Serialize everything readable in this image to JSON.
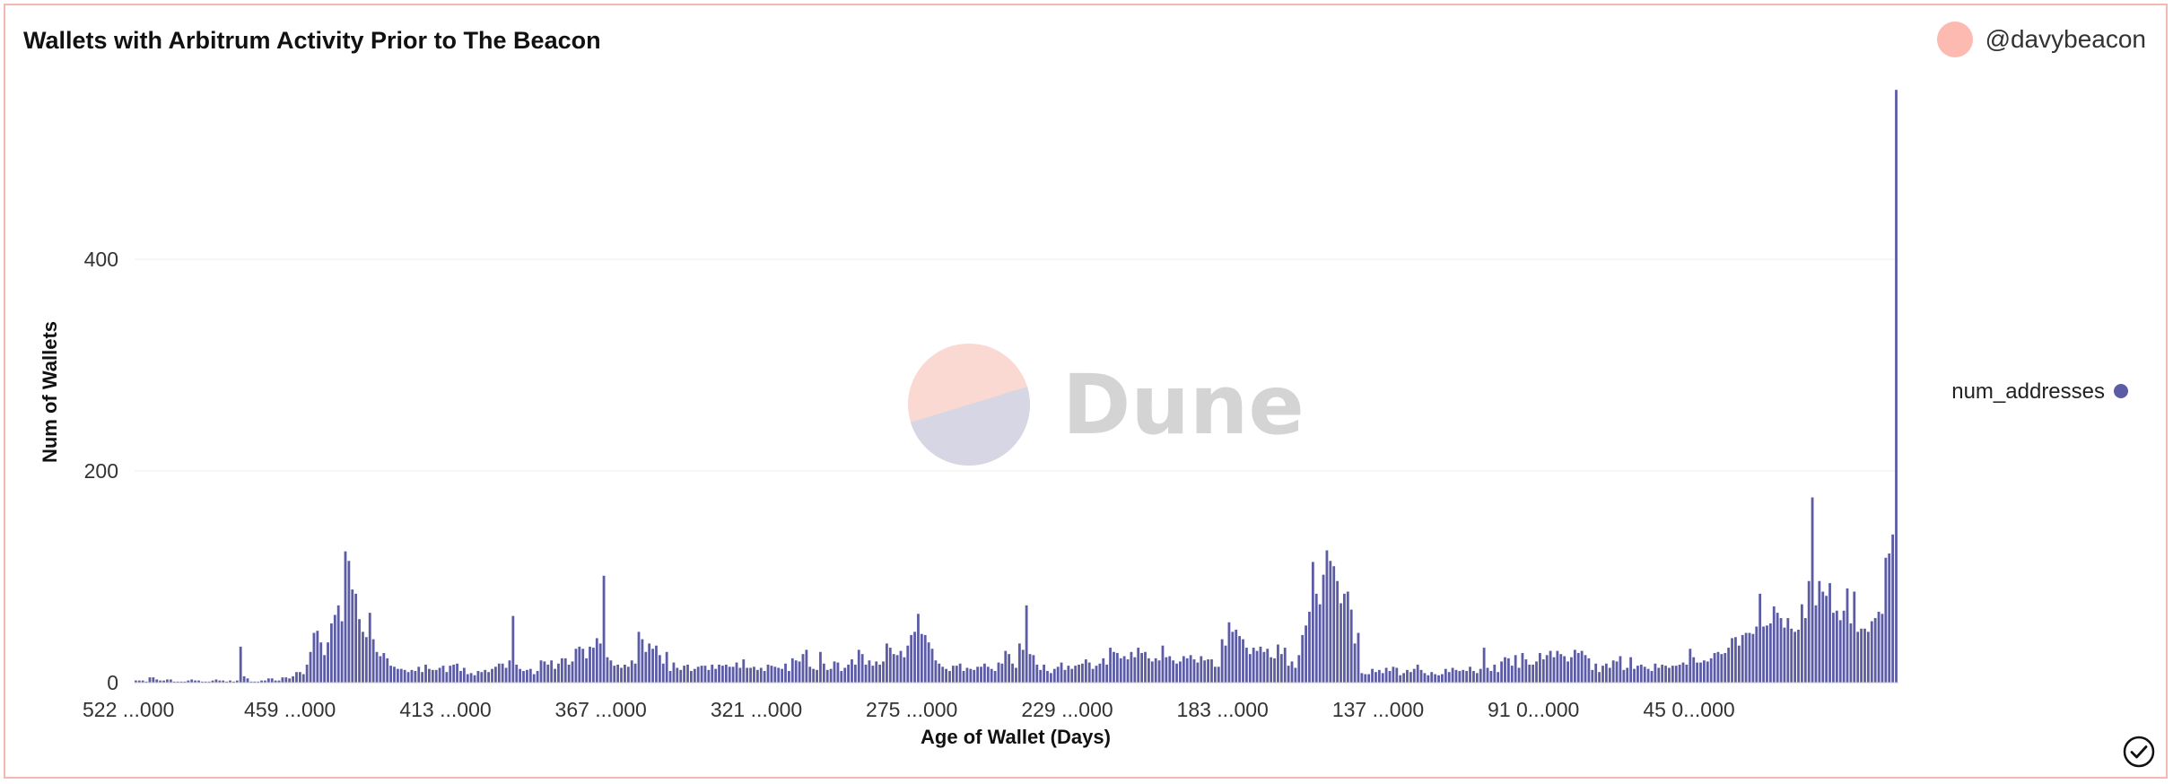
{
  "header": {
    "title": "Wallets with Arbitrum Activity Prior to The Beacon",
    "author": "@davybeacon"
  },
  "watermark": {
    "text": "Dune"
  },
  "icons": {
    "avatar": "avatar-circle",
    "status": "check-circle-icon",
    "legend_marker": "dot"
  },
  "colors": {
    "bar": "#5c5ca6",
    "grid": "#ececec",
    "accent": "#fcbab0",
    "watermark_top": "#fbd9d3",
    "watermark_bottom": "#d6d6e4"
  },
  "chart_data": {
    "type": "bar",
    "title": "Wallets with Arbitrum Activity Prior to The Beacon",
    "xlabel": "Age of Wallet (Days)",
    "ylabel": "Num of Wallets",
    "ylim": [
      0,
      560
    ],
    "yticks": [
      0,
      200,
      400
    ],
    "xticklabels": [
      "522 ...000",
      "459 ...000",
      "413 ...000",
      "367 ...000",
      "321 ...000",
      "275 ...000",
      "229 ...000",
      "183 ...000",
      "137 ...000",
      "91 0...000",
      "45 0...000"
    ],
    "legend_position": "right",
    "grid": true,
    "series": [
      {
        "name": "num_addresses",
        "age_max": 522,
        "age_min": 0,
        "values": [
          2,
          2,
          2,
          1,
          5,
          5,
          3,
          2,
          2,
          3,
          3,
          1,
          1,
          1,
          1,
          2,
          3,
          2,
          2,
          1,
          1,
          1,
          2,
          3,
          2,
          2,
          1,
          2,
          1,
          2,
          34,
          6,
          4,
          1,
          1,
          1,
          2,
          2,
          4,
          4,
          2,
          2,
          5,
          5,
          4,
          6,
          10,
          10,
          8,
          17,
          29,
          47,
          49,
          38,
          26,
          38,
          56,
          64,
          73,
          58,
          124,
          115,
          88,
          84,
          60,
          48,
          43,
          66,
          41,
          29,
          25,
          28,
          23,
          16,
          15,
          13,
          13,
          12,
          10,
          12,
          11,
          15,
          10,
          17,
          13,
          12,
          12,
          14,
          16,
          10,
          16,
          17,
          18,
          11,
          14,
          8,
          9,
          7,
          11,
          10,
          12,
          10,
          13,
          15,
          18,
          18,
          14,
          21,
          63,
          17,
          13,
          11,
          12,
          13,
          8,
          11,
          21,
          20,
          17,
          21,
          13,
          18,
          23,
          23,
          17,
          20,
          32,
          34,
          32,
          23,
          34,
          33,
          42,
          37,
          101,
          24,
          21,
          16,
          17,
          14,
          17,
          15,
          21,
          18,
          48,
          41,
          29,
          37,
          32,
          35,
          26,
          18,
          29,
          11,
          19,
          14,
          12,
          16,
          17,
          11,
          13,
          15,
          16,
          16,
          12,
          17,
          13,
          17,
          16,
          17,
          15,
          15,
          19,
          14,
          22,
          14,
          14,
          15,
          12,
          14,
          11,
          17,
          16,
          15,
          14,
          13,
          18,
          11,
          23,
          21,
          20,
          27,
          31,
          15,
          13,
          12,
          29,
          18,
          12,
          13,
          20,
          19,
          11,
          14,
          17,
          22,
          17,
          31,
          27,
          17,
          21,
          16,
          20,
          17,
          20,
          37,
          33,
          27,
          26,
          30,
          24,
          35,
          45,
          48,
          65,
          46,
          45,
          38,
          32,
          21,
          18,
          15,
          13,
          11,
          16,
          16,
          18,
          11,
          14,
          13,
          12,
          15,
          15,
          18,
          15,
          13,
          11,
          19,
          18,
          30,
          27,
          18,
          14,
          37,
          31,
          73,
          27,
          26,
          17,
          12,
          17,
          11,
          9,
          13,
          15,
          19,
          12,
          16,
          13,
          16,
          17,
          18,
          22,
          19,
          13,
          16,
          18,
          23,
          17,
          33,
          29,
          28,
          23,
          25,
          22,
          29,
          24,
          33,
          28,
          29,
          23,
          20,
          23,
          21,
          35,
          24,
          25,
          21,
          18,
          20,
          25,
          23,
          26,
          22,
          19,
          25,
          21,
          22,
          22,
          15,
          15,
          41,
          35,
          57,
          48,
          50,
          44,
          41,
          33,
          27,
          33,
          30,
          34,
          29,
          32,
          24,
          23,
          36,
          27,
          33,
          16,
          20,
          14,
          26,
          45,
          54,
          67,
          114,
          84,
          74,
          102,
          125,
          115,
          110,
          96,
          75,
          84,
          86,
          69,
          37,
          47,
          9,
          8,
          8,
          13,
          10,
          12,
          9,
          14,
          11,
          15,
          14,
          7,
          9,
          12,
          10,
          13,
          17,
          12,
          9,
          7,
          10,
          8,
          7,
          8,
          13,
          10,
          14,
          12,
          11,
          12,
          11,
          15,
          11,
          9,
          13,
          33,
          14,
          11,
          17,
          10,
          20,
          24,
          23,
          16,
          26,
          14,
          28,
          22,
          17,
          17,
          20,
          28,
          22,
          26,
          30,
          24,
          30,
          27,
          25,
          20,
          24,
          31,
          28,
          30,
          26,
          23,
          12,
          18,
          10,
          16,
          18,
          14,
          21,
          20,
          25,
          12,
          14,
          24,
          13,
          16,
          17,
          15,
          13,
          11,
          18,
          14,
          17,
          16,
          14,
          16,
          16,
          17,
          19,
          17,
          32,
          24,
          19,
          19,
          21,
          20,
          23,
          28,
          29,
          27,
          28,
          33,
          42,
          43,
          35,
          45,
          47,
          47,
          46,
          53,
          84,
          53,
          54,
          56,
          72,
          66,
          61,
          52,
          61,
          51,
          48,
          50,
          74,
          61,
          96,
          175,
          73,
          96,
          86,
          82,
          94,
          66,
          68,
          59,
          68,
          89,
          56,
          86,
          48,
          51,
          51,
          48,
          58,
          61,
          67,
          65,
          118,
          122,
          140,
          560
        ]
      }
    ]
  }
}
